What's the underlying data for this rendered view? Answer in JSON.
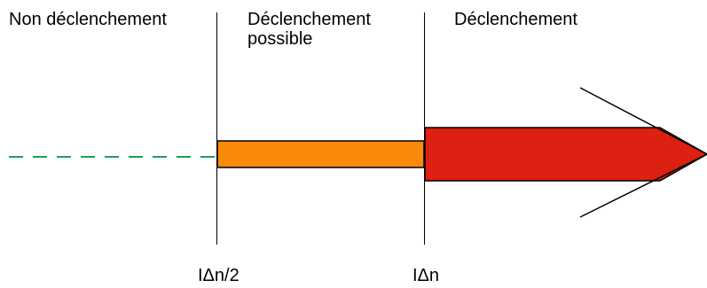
{
  "zones": {
    "left_label": "Non déclenchement",
    "middle_label_line1": "Déclenchement",
    "middle_label_line2": "possible",
    "right_label": "Déclenchement"
  },
  "thresholds": {
    "half": "IΔn/2",
    "full": "IΔn"
  },
  "colors": {
    "dashed_line": "#1aa35a",
    "orange_bar": "#f78a0a",
    "red_arrow": "#dc2011",
    "stroke": "#000000",
    "background": "#ffffff"
  }
}
